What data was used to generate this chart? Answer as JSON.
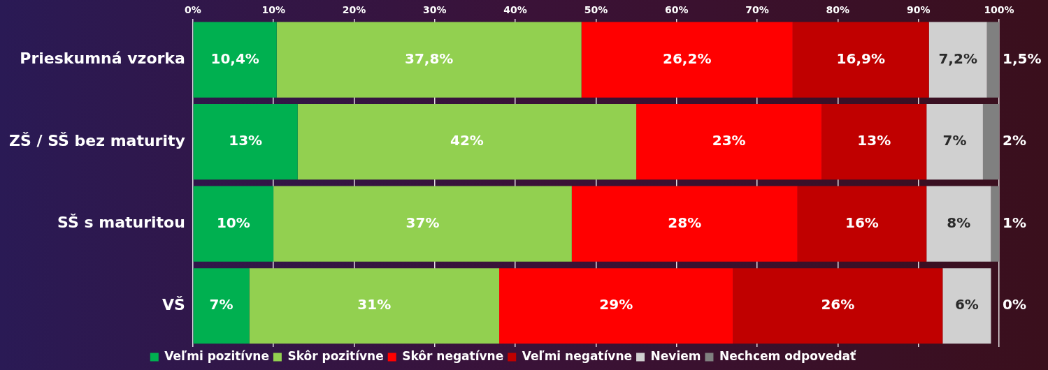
{
  "chart_data": {
    "type": "bar",
    "orientation": "horizontal",
    "stacked": true,
    "categories": [
      "Prieskumná vzorka",
      "ZŠ / SŠ bez maturity",
      "SŠ s maturitou",
      "VŠ"
    ],
    "series": [
      {
        "name": "Veľmi pozitívne",
        "color": "#00b050",
        "values": [
          10.4,
          13,
          10,
          7
        ],
        "value_labels": [
          "10,4%",
          "13%",
          "10%",
          "7%"
        ]
      },
      {
        "name": "Skôr pozitívne",
        "color": "#92d050",
        "values": [
          37.8,
          42,
          37,
          31
        ],
        "value_labels": [
          "37,8%",
          "42%",
          "37%",
          "31%"
        ]
      },
      {
        "name": "Skôr negatívne",
        "color": "#ff0000",
        "values": [
          26.2,
          23,
          28,
          29
        ],
        "value_labels": [
          "26,2%",
          "23%",
          "28%",
          "29%"
        ]
      },
      {
        "name": "Veľmi negatívne",
        "color": "#c00000",
        "values": [
          16.9,
          13,
          16,
          26
        ],
        "value_labels": [
          "16,9%",
          "13%",
          "16%",
          "26%"
        ]
      },
      {
        "name": "Neviem",
        "color": "#d0d0d0",
        "values": [
          7.2,
          7,
          8,
          6
        ],
        "value_labels": [
          "7,2%",
          "7%",
          "8%",
          "6%"
        ]
      },
      {
        "name": "Nechcem odpovedať",
        "color": "#808080",
        "values": [
          1.5,
          2,
          1,
          0
        ],
        "value_labels": [
          "1,5%",
          "2%",
          "1%",
          "0%"
        ]
      }
    ],
    "xlim": [
      0,
      100
    ],
    "xticks": [
      {
        "value": 0,
        "label": "0%"
      },
      {
        "value": 10,
        "label": "10%"
      },
      {
        "value": 20,
        "label": "20%"
      },
      {
        "value": 30,
        "label": "30%"
      },
      {
        "value": 40,
        "label": "40%"
      },
      {
        "value": 50,
        "label": "50%"
      },
      {
        "value": 60,
        "label": "60%"
      },
      {
        "value": 70,
        "label": "70%"
      },
      {
        "value": 80,
        "label": "80%"
      },
      {
        "value": 90,
        "label": "90%"
      },
      {
        "value": 100,
        "label": "100%"
      }
    ],
    "grid": "x",
    "legend": "bottom"
  }
}
